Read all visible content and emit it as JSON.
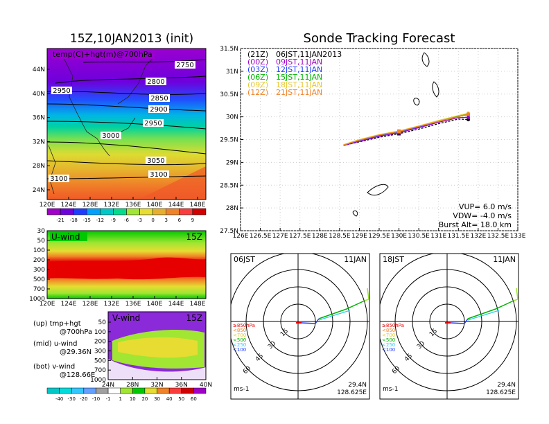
{
  "left_panel": {
    "title": "15Z,10JAN2013 (init)",
    "map_label": "temp(C)+hgt(m)@700hPa",
    "lat_ticks": [
      "44N",
      "40N",
      "36N",
      "32N",
      "28N",
      "24N"
    ],
    "lon_ticks": [
      "120E",
      "124E",
      "128E",
      "132E",
      "136E",
      "140E",
      "144E",
      "148E"
    ],
    "contour_labels": [
      "2750",
      "2800",
      "2850",
      "2900",
      "2950",
      "2950",
      "3000",
      "3050",
      "3100",
      "3100"
    ],
    "colorbar_ticks": [
      "-21",
      "-18",
      "-15",
      "-12",
      "-9",
      "-6",
      "-3",
      "0",
      "3",
      "6",
      "9"
    ],
    "colorbar_colors": [
      "#a000c8",
      "#6e00dc",
      "#1e3cff",
      "#00a0ff",
      "#00c8c8",
      "#00dc8c",
      "#a0e632",
      "#e6dc32",
      "#e6af2d",
      "#f08228",
      "#fa3c3c",
      "#d20000"
    ]
  },
  "uwind_panel": {
    "label": "U-wind",
    "time": "15Z",
    "p_ticks": [
      "30",
      "50",
      "100",
      "200",
      "300",
      "500",
      "700",
      "1000"
    ],
    "lon_ticks": [
      "120E",
      "124E",
      "128E",
      "132E",
      "136E",
      "140E",
      "144E",
      "148E"
    ]
  },
  "vwind_panel": {
    "label": "V-wind",
    "time": "15Z",
    "p_ticks": [
      "50",
      "100",
      "200",
      "300",
      "500",
      "700",
      "1000"
    ],
    "lat_ticks": [
      "24N",
      "28N",
      "32N",
      "36N",
      "40N"
    ]
  },
  "legend_notes": [
    {
      "a": "(up) tmp+hgt",
      "b": "@700hPa"
    },
    {
      "a": "(mid) u-wind",
      "b": "@29.36N"
    },
    {
      "a": "(bot) v-wind",
      "b": "@128.66E"
    }
  ],
  "wind_colorbar": {
    "ticks": [
      "-40",
      "-30",
      "-20",
      "-10",
      "-1",
      "1",
      "10",
      "20",
      "30",
      "40",
      "50",
      "60"
    ],
    "colors": [
      "#00c8c8",
      "#00dcdc",
      "#32c8ff",
      "#64a0ff",
      "#a0a0a0",
      "#ffffff",
      "#a0e632",
      "#00c800",
      "#e6dc32",
      "#f08228",
      "#fa3c3c",
      "#d20000",
      "#a000c8"
    ]
  },
  "right_panel": {
    "title": "Sonde Tracking Forecast",
    "legend": [
      {
        "code": "(21Z)",
        "text": "06JST,11JAN2013",
        "color": "#000000"
      },
      {
        "code": "(00Z)",
        "text": "09JST,11JAN",
        "color": "#a000c8"
      },
      {
        "code": "(03Z)",
        "text": "12JST,11JAN",
        "color": "#1e3cff"
      },
      {
        "code": "(06Z)",
        "text": "15JST,11JAN",
        "color": "#00b400"
      },
      {
        "code": "(09Z)",
        "text": "18JST,11JAN",
        "color": "#e6c832"
      },
      {
        "code": "(12Z)",
        "text": "21JST,11JAN",
        "color": "#f08228"
      }
    ],
    "lat_ticks": [
      "31.5N",
      "31N",
      "30.5N",
      "30N",
      "29.5N",
      "29N",
      "28.5N",
      "28N",
      "27.5N"
    ],
    "lon_ticks": [
      "126E",
      "126.5E",
      "127E",
      "127.5E",
      "128E",
      "128.5E",
      "129E",
      "129.5E",
      "130E",
      "130.5E",
      "131E",
      "131.5E",
      "132E",
      "132.5E",
      "133E"
    ],
    "params": [
      "VUP= 6.0 m/s",
      "VDW= -4.0 m/s",
      "Burst Alt= 18.0 km"
    ]
  },
  "hodographs": [
    {
      "time": "06JST",
      "date": "11JAN",
      "lat": "29.4N",
      "lon": "128.625E",
      "unit": "ms-1"
    },
    {
      "time": "18JST",
      "date": "11JAN",
      "lat": "29.4N",
      "lon": "128.625E",
      "unit": "ms-1"
    }
  ],
  "hodo_rings": [
    "15",
    "30",
    "45",
    "60"
  ],
  "hodo_levels": [
    {
      "label": "≥850hPa",
      "color": "#e60000"
    },
    {
      "label": "<850",
      "color": "#f08228"
    },
    {
      "label": "<700",
      "color": "#e6c832"
    },
    {
      "label": "<500",
      "color": "#00b400"
    },
    {
      "label": "<250",
      "color": "#32c8ff"
    },
    {
      "label": "<100",
      "color": "#1e3cff"
    }
  ],
  "chart_data": {
    "type": "line",
    "title": "Sonde Tracking Forecast",
    "xlabel": "",
    "ylabel": "",
    "xlim": [
      126,
      133
    ],
    "ylim": [
      27.5,
      31.5
    ],
    "series": [
      {
        "name": "(21Z) 06JST,11JAN2013",
        "x": [
          128.6,
          129.0,
          129.5,
          130.0,
          130.5,
          131.0,
          131.5,
          131.75
        ],
        "y": [
          29.37,
          29.45,
          29.55,
          29.63,
          29.73,
          29.85,
          29.95,
          29.94
        ]
      },
      {
        "name": "(00Z) 09JST,11JAN",
        "x": [
          128.6,
          129.0,
          129.5,
          130.0,
          130.5,
          131.0,
          131.5,
          131.75
        ],
        "y": [
          29.37,
          29.46,
          29.57,
          29.65,
          29.76,
          29.88,
          29.98,
          29.99
        ]
      },
      {
        "name": "(03Z) 12JST,11JAN",
        "x": [
          128.6,
          129.0,
          129.5,
          130.0,
          130.5,
          131.0,
          131.5,
          131.75
        ],
        "y": [
          29.38,
          29.48,
          29.59,
          29.67,
          29.78,
          29.9,
          30.01,
          30.05
        ]
      },
      {
        "name": "(06Z) 15JST,11JAN",
        "x": [
          128.6,
          129.0,
          129.5,
          130.0,
          130.5,
          131.0,
          131.5,
          131.75
        ],
        "y": [
          29.38,
          29.49,
          29.6,
          29.68,
          29.79,
          29.91,
          30.02,
          30.07
        ]
      },
      {
        "name": "(09Z) 18JST,11JAN",
        "x": [
          128.6,
          129.0,
          129.5,
          130.0,
          130.5,
          131.0,
          131.5,
          131.75
        ],
        "y": [
          29.39,
          29.5,
          29.61,
          29.69,
          29.8,
          29.92,
          30.03,
          30.08
        ]
      },
      {
        "name": "(12Z) 21JST,11JAN",
        "x": [
          128.6,
          129.0,
          129.5,
          130.0,
          130.5,
          131.0,
          131.5,
          131.75
        ],
        "y": [
          29.38,
          29.49,
          29.6,
          29.68,
          29.79,
          29.9,
          30.0,
          30.06
        ]
      }
    ]
  }
}
